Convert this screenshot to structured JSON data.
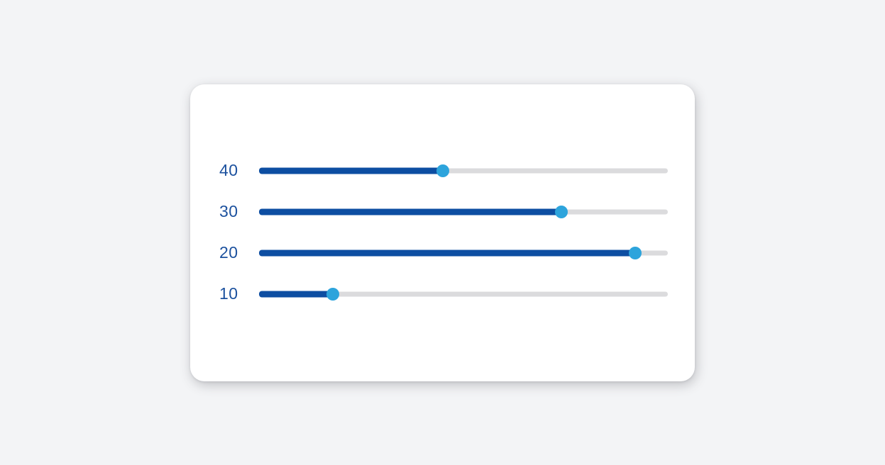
{
  "page": {
    "background_color": "#F3F4F6"
  },
  "card": {
    "background_color": "#FFFFFF"
  },
  "colors": {
    "track_fill": "#0D4EA2",
    "track_empty": "#DBDBDD",
    "thumb": "#2DA4DC",
    "label": "#1C519E"
  },
  "sliders": [
    {
      "label": "40",
      "value_percent": 45
    },
    {
      "label": "30",
      "value_percent": 74
    },
    {
      "label": "20",
      "value_percent": 92
    },
    {
      "label": "10",
      "value_percent": 18
    }
  ]
}
